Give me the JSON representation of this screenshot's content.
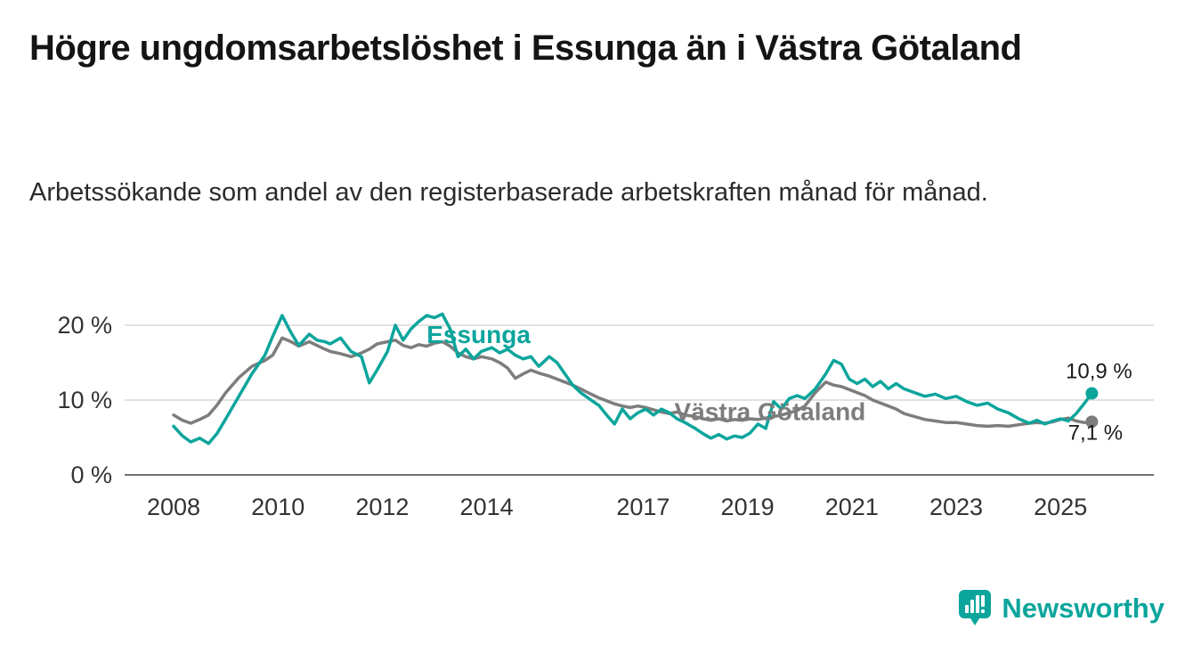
{
  "header": {
    "title": "Högre ungdomsarbetslöshet i Essunga än i Västra Götaland",
    "subtitle": "Arbetssökande som andel av den registerbaserade arbetskraften månad för månad."
  },
  "colors": {
    "accent_teal": "#0ca59c",
    "series_gray": "#7d7d7d",
    "gridline": "#d9d9d9",
    "axis_line": "#707070",
    "tick_text": "#333333",
    "value_text": "#1a1a1a"
  },
  "footer": {
    "brand": "Newsworthy",
    "brand_color": "#0ca59c"
  },
  "chart_data": {
    "type": "line",
    "title": "Högre ungdomsarbetslöshet i Essunga än i Västra Götaland",
    "subtitle": "Arbetssökande som andel av den registerbaserade arbetskraften månad för månad.",
    "xlabel": "",
    "ylabel": "",
    "unit": "%",
    "xlim": [
      2007.6,
      2026.4
    ],
    "ylim": [
      0,
      22
    ],
    "grid": "horizontal",
    "legend_position": "inline-labels",
    "yticks": [
      {
        "value": 0,
        "label": "0 %"
      },
      {
        "value": 10,
        "label": "10 %"
      },
      {
        "value": 20,
        "label": "20 %"
      }
    ],
    "xticks": [
      {
        "value": 2008,
        "label": "2008"
      },
      {
        "value": 2010,
        "label": "2010"
      },
      {
        "value": 2012,
        "label": "2012"
      },
      {
        "value": 2014,
        "label": "2014"
      },
      {
        "value": 2017,
        "label": "2017"
      },
      {
        "value": 2019,
        "label": "2019"
      },
      {
        "value": 2021,
        "label": "2021"
      },
      {
        "value": 2023,
        "label": "2023"
      },
      {
        "value": 2025,
        "label": "2025"
      }
    ],
    "series": [
      {
        "name": "Västra Götaland",
        "color": "#7d7d7d",
        "end_label": "7,1 %",
        "end_value": 7.1,
        "end_label_offset": [
          4,
          20
        ],
        "points": [
          [
            2008.0,
            8.0
          ],
          [
            2008.17,
            7.3
          ],
          [
            2008.33,
            6.9
          ],
          [
            2008.5,
            7.4
          ],
          [
            2008.67,
            8.0
          ],
          [
            2008.83,
            9.3
          ],
          [
            2009.0,
            11.0
          ],
          [
            2009.25,
            13.0
          ],
          [
            2009.5,
            14.5
          ],
          [
            2009.75,
            15.3
          ],
          [
            2009.9,
            16.0
          ],
          [
            2010.08,
            18.3
          ],
          [
            2010.25,
            17.8
          ],
          [
            2010.4,
            17.2
          ],
          [
            2010.6,
            17.8
          ],
          [
            2010.75,
            17.3
          ],
          [
            2010.9,
            16.8
          ],
          [
            2011.0,
            16.5
          ],
          [
            2011.2,
            16.2
          ],
          [
            2011.4,
            15.8
          ],
          [
            2011.6,
            16.3
          ],
          [
            2011.75,
            16.8
          ],
          [
            2011.9,
            17.5
          ],
          [
            2012.1,
            17.8
          ],
          [
            2012.25,
            18.0
          ],
          [
            2012.4,
            17.3
          ],
          [
            2012.55,
            17.0
          ],
          [
            2012.7,
            17.4
          ],
          [
            2012.85,
            17.2
          ],
          [
            2013.0,
            17.6
          ],
          [
            2013.15,
            17.8
          ],
          [
            2013.3,
            17.2
          ],
          [
            2013.45,
            16.3
          ],
          [
            2013.6,
            15.8
          ],
          [
            2013.75,
            15.5
          ],
          [
            2013.9,
            15.8
          ],
          [
            2014.1,
            15.5
          ],
          [
            2014.25,
            15.0
          ],
          [
            2014.4,
            14.3
          ],
          [
            2014.55,
            12.9
          ],
          [
            2014.7,
            13.5
          ],
          [
            2014.85,
            14.0
          ],
          [
            2015.0,
            13.6
          ],
          [
            2015.2,
            13.2
          ],
          [
            2015.35,
            12.8
          ],
          [
            2015.5,
            12.4
          ],
          [
            2015.65,
            12.0
          ],
          [
            2015.8,
            11.5
          ],
          [
            2016.0,
            10.8
          ],
          [
            2016.15,
            10.3
          ],
          [
            2016.3,
            9.9
          ],
          [
            2016.45,
            9.5
          ],
          [
            2016.6,
            9.2
          ],
          [
            2016.75,
            9.0
          ],
          [
            2016.9,
            9.2
          ],
          [
            2017.05,
            9.0
          ],
          [
            2017.2,
            8.7
          ],
          [
            2017.35,
            8.4
          ],
          [
            2017.5,
            8.2
          ],
          [
            2017.65,
            8.4
          ],
          [
            2017.8,
            8.0
          ],
          [
            2018.0,
            7.8
          ],
          [
            2018.15,
            7.5
          ],
          [
            2018.3,
            7.3
          ],
          [
            2018.45,
            7.5
          ],
          [
            2018.6,
            7.2
          ],
          [
            2018.75,
            7.4
          ],
          [
            2018.9,
            7.3
          ],
          [
            2019.05,
            7.5
          ],
          [
            2019.2,
            7.4
          ],
          [
            2019.35,
            7.6
          ],
          [
            2019.5,
            7.8
          ],
          [
            2019.65,
            8.0
          ],
          [
            2019.8,
            8.3
          ],
          [
            2019.95,
            8.6
          ],
          [
            2020.1,
            9.2
          ],
          [
            2020.3,
            11.0
          ],
          [
            2020.5,
            12.4
          ],
          [
            2020.65,
            12.0
          ],
          [
            2020.8,
            11.8
          ],
          [
            2020.95,
            11.4
          ],
          [
            2021.1,
            11.0
          ],
          [
            2021.25,
            10.6
          ],
          [
            2021.4,
            10.0
          ],
          [
            2021.55,
            9.6
          ],
          [
            2021.7,
            9.2
          ],
          [
            2021.85,
            8.8
          ],
          [
            2022.0,
            8.2
          ],
          [
            2022.2,
            7.8
          ],
          [
            2022.4,
            7.4
          ],
          [
            2022.6,
            7.2
          ],
          [
            2022.8,
            7.0
          ],
          [
            2023.0,
            7.0
          ],
          [
            2023.2,
            6.8
          ],
          [
            2023.4,
            6.6
          ],
          [
            2023.6,
            6.5
          ],
          [
            2023.8,
            6.6
          ],
          [
            2024.0,
            6.5
          ],
          [
            2024.2,
            6.7
          ],
          [
            2024.4,
            6.9
          ],
          [
            2024.55,
            7.0
          ],
          [
            2024.7,
            6.9
          ],
          [
            2024.85,
            7.1
          ],
          [
            2025.0,
            7.4
          ],
          [
            2025.15,
            7.6
          ],
          [
            2025.3,
            7.2
          ],
          [
            2025.45,
            7.0
          ],
          [
            2025.6,
            7.1
          ]
        ]
      },
      {
        "name": "Essunga",
        "color": "#0ca59c",
        "end_label": "10,9 %",
        "end_value": 10.9,
        "end_label_offset": [
          8,
          -17
        ],
        "points": [
          [
            2008.0,
            6.5
          ],
          [
            2008.17,
            5.2
          ],
          [
            2008.33,
            4.4
          ],
          [
            2008.5,
            4.9
          ],
          [
            2008.67,
            4.2
          ],
          [
            2008.83,
            5.5
          ],
          [
            2009.0,
            7.5
          ],
          [
            2009.25,
            10.5
          ],
          [
            2009.5,
            13.5
          ],
          [
            2009.75,
            16.0
          ],
          [
            2009.9,
            18.5
          ],
          [
            2010.08,
            21.3
          ],
          [
            2010.25,
            19.0
          ],
          [
            2010.4,
            17.3
          ],
          [
            2010.6,
            18.8
          ],
          [
            2010.75,
            18.0
          ],
          [
            2010.9,
            17.8
          ],
          [
            2011.0,
            17.5
          ],
          [
            2011.2,
            18.3
          ],
          [
            2011.4,
            16.5
          ],
          [
            2011.6,
            15.8
          ],
          [
            2011.75,
            12.3
          ],
          [
            2011.9,
            14.0
          ],
          [
            2012.1,
            16.5
          ],
          [
            2012.25,
            20.0
          ],
          [
            2012.4,
            18.0
          ],
          [
            2012.55,
            19.5
          ],
          [
            2012.7,
            20.5
          ],
          [
            2012.85,
            21.3
          ],
          [
            2013.0,
            21.0
          ],
          [
            2013.15,
            21.5
          ],
          [
            2013.3,
            19.5
          ],
          [
            2013.45,
            15.8
          ],
          [
            2013.6,
            16.8
          ],
          [
            2013.75,
            15.5
          ],
          [
            2013.9,
            16.5
          ],
          [
            2014.1,
            17.0
          ],
          [
            2014.25,
            16.3
          ],
          [
            2014.4,
            16.8
          ],
          [
            2014.55,
            16.0
          ],
          [
            2014.7,
            15.5
          ],
          [
            2014.85,
            15.8
          ],
          [
            2015.0,
            14.5
          ],
          [
            2015.2,
            15.8
          ],
          [
            2015.35,
            15.0
          ],
          [
            2015.5,
            13.5
          ],
          [
            2015.65,
            12.0
          ],
          [
            2015.8,
            11.0
          ],
          [
            2016.0,
            10.0
          ],
          [
            2016.15,
            9.3
          ],
          [
            2016.3,
            8.0
          ],
          [
            2016.45,
            6.8
          ],
          [
            2016.6,
            8.8
          ],
          [
            2016.75,
            7.5
          ],
          [
            2016.9,
            8.3
          ],
          [
            2017.05,
            8.8
          ],
          [
            2017.2,
            8.0
          ],
          [
            2017.35,
            8.8
          ],
          [
            2017.5,
            8.3
          ],
          [
            2017.65,
            7.5
          ],
          [
            2017.8,
            7.0
          ],
          [
            2018.0,
            6.2
          ],
          [
            2018.15,
            5.5
          ],
          [
            2018.3,
            4.9
          ],
          [
            2018.45,
            5.4
          ],
          [
            2018.6,
            4.8
          ],
          [
            2018.75,
            5.2
          ],
          [
            2018.9,
            5.0
          ],
          [
            2019.05,
            5.6
          ],
          [
            2019.2,
            6.8
          ],
          [
            2019.35,
            6.2
          ],
          [
            2019.5,
            9.8
          ],
          [
            2019.65,
            8.8
          ],
          [
            2019.8,
            10.2
          ],
          [
            2019.95,
            10.6
          ],
          [
            2020.1,
            10.2
          ],
          [
            2020.3,
            11.5
          ],
          [
            2020.5,
            13.5
          ],
          [
            2020.65,
            15.3
          ],
          [
            2020.8,
            14.8
          ],
          [
            2020.95,
            12.8
          ],
          [
            2021.1,
            12.2
          ],
          [
            2021.25,
            12.8
          ],
          [
            2021.4,
            11.8
          ],
          [
            2021.55,
            12.5
          ],
          [
            2021.7,
            11.5
          ],
          [
            2021.85,
            12.2
          ],
          [
            2022.0,
            11.5
          ],
          [
            2022.2,
            11.0
          ],
          [
            2022.4,
            10.5
          ],
          [
            2022.6,
            10.8
          ],
          [
            2022.8,
            10.2
          ],
          [
            2023.0,
            10.5
          ],
          [
            2023.2,
            9.8
          ],
          [
            2023.4,
            9.3
          ],
          [
            2023.6,
            9.6
          ],
          [
            2023.8,
            8.8
          ],
          [
            2024.0,
            8.3
          ],
          [
            2024.2,
            7.5
          ],
          [
            2024.4,
            6.9
          ],
          [
            2024.55,
            7.3
          ],
          [
            2024.7,
            6.8
          ],
          [
            2024.85,
            7.2
          ],
          [
            2025.0,
            7.5
          ],
          [
            2025.15,
            7.2
          ],
          [
            2025.3,
            8.2
          ],
          [
            2025.45,
            9.5
          ],
          [
            2025.6,
            10.9
          ]
        ]
      }
    ],
    "series_name_annotations": [
      {
        "text": "Essunga",
        "x": 2012.85,
        "y": 17.6,
        "color": "#0ca59c"
      },
      {
        "text": "Västra Götaland",
        "x": 2017.6,
        "y": 7.3,
        "color": "#7d7d7d"
      }
    ]
  }
}
